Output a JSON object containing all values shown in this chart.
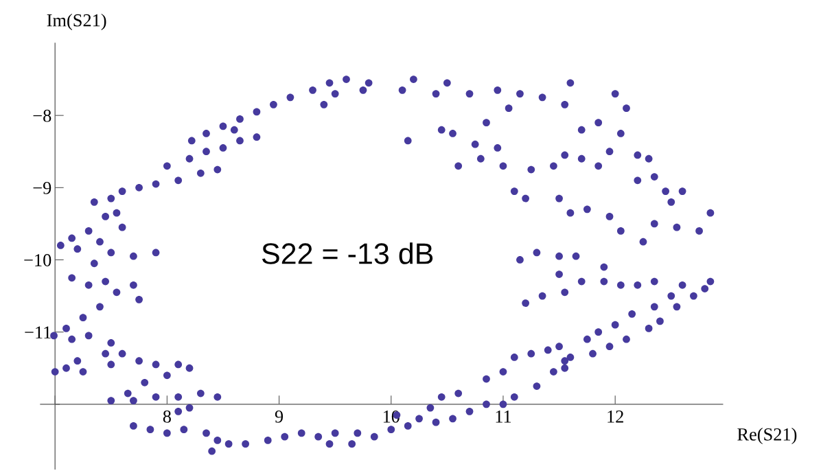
{
  "chart_data": {
    "type": "scatter",
    "xlabel": "Re(S21)",
    "ylabel": "Im(S21)",
    "annotations": [
      "S22 = -13 dB"
    ],
    "xlim": [
      6.87,
      12.96
    ],
    "ylim": [
      -12.9,
      -7.0
    ],
    "xticks": [
      {
        "value": 7,
        "label": null
      },
      8,
      9,
      10,
      11,
      12
    ],
    "yticks": [
      {
        "value": -12,
        "label": null
      },
      {
        "value": -11,
        "label": "−11"
      },
      {
        "value": -10,
        "label": "−10"
      },
      {
        "value": -9,
        "label": "−9"
      },
      {
        "value": -8,
        "label": "−8"
      }
    ],
    "grid": false,
    "marker": "circle",
    "series": [
      {
        "color": "#463a9e",
        "x": [
          8.22,
          8.35,
          8.5,
          8.65,
          8.8,
          8.95,
          9.1,
          9.3,
          9.45,
          9.6,
          9.8,
          9.75,
          9.5,
          9.4,
          8.2,
          8.35,
          8.5,
          8.65,
          8.8,
          8.6,
          8.3,
          8.45,
          8.0,
          8.1,
          7.9,
          7.75,
          7.6,
          7.5,
          7.35,
          7.45,
          7.55,
          7.6,
          7.3,
          7.15,
          7.05,
          7.2,
          7.4,
          7.5,
          7.7,
          7.9,
          7.35,
          7.15,
          7.3,
          7.45,
          7.55,
          7.7,
          7.75,
          7.4,
          7.25,
          7.1,
          6.99,
          7.15,
          7.3,
          7.5,
          7.6,
          7.45,
          7.2,
          7.1,
          7.0,
          7.25,
          7.5,
          7.75,
          7.9,
          8.1,
          8.2,
          8.0,
          7.8,
          7.65,
          7.5,
          7.7,
          7.9,
          8.1,
          8.3,
          8.45,
          8.2,
          8.1,
          7.7,
          7.85,
          8.0,
          8.15,
          8.35,
          8.45,
          8.4,
          8.55,
          8.7,
          8.9,
          9.05,
          9.2,
          9.35,
          9.5,
          9.45,
          9.7,
          9.65,
          9.85,
          10.0,
          10.15,
          10.25,
          10.4,
          10.55,
          10.7,
          10.85,
          10.35,
          10.45,
          10.6,
          10.05,
          11.0,
          11.1,
          11.3,
          11.45,
          11.55,
          11.6,
          11.8,
          11.95,
          12.1,
          12.3,
          12.4,
          12.55,
          12.7,
          12.8,
          12.85,
          10.85,
          11.0,
          11.1,
          11.25,
          11.4,
          11.5,
          11.55,
          11.75,
          11.85,
          12.0,
          12.15,
          12.35,
          12.5,
          12.6,
          11.2,
          11.35,
          11.55,
          11.7,
          11.9,
          12.05,
          12.2,
          12.35,
          11.15,
          11.3,
          11.5,
          11.65,
          11.5,
          11.9,
          12.25,
          12.35,
          12.55,
          12.75,
          12.85,
          12.5,
          12.6,
          12.05,
          11.95,
          11.75,
          11.6,
          11.5,
          11.2,
          11.1,
          11.25,
          11.45,
          11.55,
          11.7,
          11.85,
          11.95,
          12.2,
          12.3,
          12.35,
          12.2,
          12.45,
          11.0,
          10.8,
          10.6,
          10.95,
          10.75,
          10.55,
          10.45,
          10.15,
          10.85,
          11.05,
          11.15,
          11.35,
          11.55,
          11.6,
          12.0,
          12.1,
          11.85,
          11.7,
          12.05,
          10.7,
          10.5,
          10.2,
          10.1,
          10.4,
          10.95
        ],
        "values": [
          -8.35,
          -8.25,
          -8.15,
          -8.05,
          -7.95,
          -7.85,
          -7.75,
          -7.65,
          -7.55,
          -7.5,
          -7.55,
          -7.65,
          -7.7,
          -7.85,
          -8.6,
          -8.5,
          -8.45,
          -8.35,
          -8.3,
          -8.2,
          -8.8,
          -8.75,
          -8.7,
          -8.9,
          -8.95,
          -9.0,
          -9.05,
          -9.15,
          -9.2,
          -9.4,
          -9.35,
          -9.55,
          -9.6,
          -9.7,
          -9.8,
          -9.85,
          -9.75,
          -9.9,
          -9.95,
          -9.9,
          -10.05,
          -10.25,
          -10.35,
          -10.3,
          -10.45,
          -10.35,
          -10.55,
          -10.65,
          -10.8,
          -10.95,
          -11.05,
          -11.1,
          -11.05,
          -11.15,
          -11.3,
          -11.3,
          -11.4,
          -11.5,
          -11.55,
          -11.55,
          -11.45,
          -11.4,
          -11.45,
          -11.45,
          -11.5,
          -11.6,
          -11.7,
          -11.85,
          -11.95,
          -11.95,
          -11.9,
          -11.9,
          -11.85,
          -11.9,
          -12.05,
          -12.1,
          -12.3,
          -12.35,
          -12.4,
          -12.35,
          -12.4,
          -12.5,
          -12.65,
          -12.55,
          -12.55,
          -12.5,
          -12.45,
          -12.4,
          -12.45,
          -12.4,
          -12.55,
          -12.4,
          -12.55,
          -12.45,
          -12.35,
          -12.3,
          -12.2,
          -12.25,
          -12.2,
          -12.1,
          -12.0,
          -12.05,
          -11.9,
          -11.85,
          -12.15,
          -12.0,
          -11.9,
          -11.75,
          -11.55,
          -11.5,
          -11.35,
          -11.3,
          -11.2,
          -11.1,
          -10.95,
          -10.85,
          -10.65,
          -10.5,
          -10.4,
          -10.3,
          -11.65,
          -11.55,
          -11.35,
          -11.3,
          -11.25,
          -11.2,
          -11.4,
          -11.1,
          -11.0,
          -10.9,
          -10.75,
          -10.65,
          -10.5,
          -10.35,
          -10.6,
          -10.5,
          -10.45,
          -10.3,
          -10.3,
          -10.35,
          -10.35,
          -10.3,
          -10.0,
          -9.9,
          -9.95,
          -9.95,
          -10.2,
          -10.1,
          -9.75,
          -9.5,
          -9.55,
          -9.6,
          -9.35,
          -9.2,
          -9.05,
          -9.6,
          -9.4,
          -9.3,
          -9.35,
          -9.15,
          -9.15,
          -9.05,
          -8.75,
          -8.7,
          -8.55,
          -8.6,
          -8.7,
          -8.5,
          -8.55,
          -8.6,
          -8.85,
          -8.9,
          -9.05,
          -8.7,
          -8.6,
          -8.7,
          -8.45,
          -8.4,
          -8.25,
          -8.2,
          -8.35,
          -8.1,
          -7.9,
          -7.7,
          -7.75,
          -7.85,
          -7.55,
          -7.7,
          -7.9,
          -8.1,
          -8.2,
          -8.25,
          -7.7,
          -7.55,
          -7.5,
          -7.65,
          -7.7,
          -7.65
        ]
      }
    ]
  }
}
